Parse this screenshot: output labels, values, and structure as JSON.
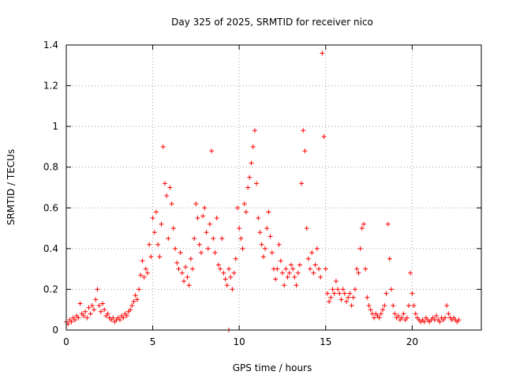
{
  "chart_data": {
    "type": "scatter",
    "title": "Day 325 of 2025, SRMTID for receiver nico",
    "xlabel": "GPS time / hours",
    "ylabel": "SRMTID / TECUs",
    "xlim": [
      0,
      24
    ],
    "ylim": [
      0,
      1.4
    ],
    "xticks": [
      0,
      5,
      10,
      15,
      20
    ],
    "xtick_labels": [
      "0",
      "5",
      "10",
      "15",
      "20"
    ],
    "yticks": [
      0,
      0.2,
      0.4,
      0.6,
      0.8,
      1.0,
      1.2,
      1.4
    ],
    "ytick_labels": [
      "0",
      "0.2",
      "0.4",
      "0.6",
      "0.8",
      "1",
      "1.2",
      "1.4"
    ],
    "grid": true,
    "marker": "+",
    "color": "#ff0000",
    "series": [
      {
        "name": "SRMTID",
        "points": [
          [
            0.0,
            0.04
          ],
          [
            0.1,
            0.03
          ],
          [
            0.2,
            0.05
          ],
          [
            0.3,
            0.04
          ],
          [
            0.4,
            0.06
          ],
          [
            0.5,
            0.05
          ],
          [
            0.6,
            0.07
          ],
          [
            0.7,
            0.06
          ],
          [
            0.8,
            0.13
          ],
          [
            0.9,
            0.08
          ],
          [
            1.0,
            0.07
          ],
          [
            1.1,
            0.09
          ],
          [
            1.2,
            0.06
          ],
          [
            1.3,
            0.11
          ],
          [
            1.4,
            0.08
          ],
          [
            1.5,
            0.12
          ],
          [
            1.6,
            0.1
          ],
          [
            1.7,
            0.15
          ],
          [
            1.8,
            0.2
          ],
          [
            1.9,
            0.12
          ],
          [
            2.0,
            0.09
          ],
          [
            2.1,
            0.13
          ],
          [
            2.2,
            0.1
          ],
          [
            2.3,
            0.07
          ],
          [
            2.4,
            0.08
          ],
          [
            2.5,
            0.06
          ],
          [
            2.6,
            0.05
          ],
          [
            2.7,
            0.06
          ],
          [
            2.8,
            0.04
          ],
          [
            2.9,
            0.05
          ],
          [
            3.0,
            0.06
          ],
          [
            3.1,
            0.05
          ],
          [
            3.2,
            0.07
          ],
          [
            3.3,
            0.06
          ],
          [
            3.4,
            0.08
          ],
          [
            3.5,
            0.07
          ],
          [
            3.6,
            0.09
          ],
          [
            3.7,
            0.1
          ],
          [
            3.8,
            0.12
          ],
          [
            3.9,
            0.14
          ],
          [
            4.0,
            0.17
          ],
          [
            4.1,
            0.15
          ],
          [
            4.2,
            0.2
          ],
          [
            4.3,
            0.27
          ],
          [
            4.4,
            0.34
          ],
          [
            4.5,
            0.26
          ],
          [
            4.6,
            0.3
          ],
          [
            4.7,
            0.28
          ],
          [
            4.8,
            0.42
          ],
          [
            4.9,
            0.36
          ],
          [
            5.0,
            0.55
          ],
          [
            5.1,
            0.48
          ],
          [
            5.2,
            0.58
          ],
          [
            5.3,
            0.42
          ],
          [
            5.4,
            0.36
          ],
          [
            5.5,
            0.52
          ],
          [
            5.6,
            0.9
          ],
          [
            5.7,
            0.72
          ],
          [
            5.8,
            0.66
          ],
          [
            5.9,
            0.45
          ],
          [
            6.0,
            0.7
          ],
          [
            6.1,
            0.62
          ],
          [
            6.2,
            0.5
          ],
          [
            6.3,
            0.4
          ],
          [
            6.4,
            0.33
          ],
          [
            6.5,
            0.3
          ],
          [
            6.6,
            0.38
          ],
          [
            6.7,
            0.28
          ],
          [
            6.8,
            0.24
          ],
          [
            6.9,
            0.31
          ],
          [
            7.0,
            0.26
          ],
          [
            7.1,
            0.22
          ],
          [
            7.2,
            0.35
          ],
          [
            7.3,
            0.3
          ],
          [
            7.4,
            0.45
          ],
          [
            7.5,
            0.62
          ],
          [
            7.6,
            0.55
          ],
          [
            7.7,
            0.42
          ],
          [
            7.8,
            0.38
          ],
          [
            7.9,
            0.56
          ],
          [
            8.0,
            0.6
          ],
          [
            8.1,
            0.48
          ],
          [
            8.2,
            0.4
          ],
          [
            8.3,
            0.52
          ],
          [
            8.4,
            0.88
          ],
          [
            8.5,
            0.45
          ],
          [
            8.6,
            0.38
          ],
          [
            8.7,
            0.55
          ],
          [
            8.8,
            0.32
          ],
          [
            8.9,
            0.3
          ],
          [
            9.0,
            0.45
          ],
          [
            9.1,
            0.28
          ],
          [
            9.2,
            0.25
          ],
          [
            9.3,
            0.22
          ],
          [
            9.4,
            0.3
          ],
          [
            9.5,
            0.26
          ],
          [
            9.6,
            0.2
          ],
          [
            9.7,
            0.28
          ],
          [
            9.8,
            0.35
          ],
          [
            9.9,
            0.6
          ],
          [
            10.0,
            0.5
          ],
          [
            10.1,
            0.45
          ],
          [
            10.2,
            0.4
          ],
          [
            10.3,
            0.62
          ],
          [
            10.4,
            0.58
          ],
          [
            10.5,
            0.7
          ],
          [
            10.6,
            0.75
          ],
          [
            10.7,
            0.82
          ],
          [
            10.8,
            0.9
          ],
          [
            10.9,
            0.98
          ],
          [
            11.0,
            0.72
          ],
          [
            11.1,
            0.55
          ],
          [
            11.2,
            0.48
          ],
          [
            11.3,
            0.42
          ],
          [
            11.4,
            0.36
          ],
          [
            11.5,
            0.4
          ],
          [
            11.6,
            0.5
          ],
          [
            11.7,
            0.58
          ],
          [
            11.8,
            0.46
          ],
          [
            11.9,
            0.38
          ],
          [
            12.0,
            0.3
          ],
          [
            12.1,
            0.25
          ],
          [
            12.2,
            0.3
          ],
          [
            12.3,
            0.42
          ],
          [
            12.4,
            0.34
          ],
          [
            12.5,
            0.28
          ],
          [
            12.6,
            0.22
          ],
          [
            12.7,
            0.3
          ],
          [
            12.8,
            0.26
          ],
          [
            12.9,
            0.28
          ],
          [
            13.0,
            0.32
          ],
          [
            13.1,
            0.3
          ],
          [
            13.2,
            0.26
          ],
          [
            13.3,
            0.22
          ],
          [
            13.4,
            0.28
          ],
          [
            13.5,
            0.32
          ],
          [
            13.6,
            0.72
          ],
          [
            13.7,
            0.98
          ],
          [
            13.8,
            0.88
          ],
          [
            13.9,
            0.5
          ],
          [
            14.0,
            0.35
          ],
          [
            14.1,
            0.3
          ],
          [
            14.2,
            0.38
          ],
          [
            14.3,
            0.28
          ],
          [
            14.4,
            0.32
          ],
          [
            14.5,
            0.4
          ],
          [
            14.6,
            0.3
          ],
          [
            14.7,
            0.26
          ],
          [
            14.8,
            1.36
          ],
          [
            14.9,
            0.95
          ],
          [
            15.0,
            0.3
          ],
          [
            15.1,
            0.18
          ],
          [
            15.2,
            0.14
          ],
          [
            15.3,
            0.16
          ],
          [
            15.4,
            0.2
          ],
          [
            15.5,
            0.18
          ],
          [
            15.6,
            0.24
          ],
          [
            15.7,
            0.2
          ],
          [
            15.8,
            0.18
          ],
          [
            15.9,
            0.15
          ],
          [
            16.0,
            0.2
          ],
          [
            16.1,
            0.18
          ],
          [
            16.2,
            0.14
          ],
          [
            16.3,
            0.16
          ],
          [
            16.4,
            0.18
          ],
          [
            16.5,
            0.12
          ],
          [
            16.6,
            0.16
          ],
          [
            16.7,
            0.2
          ],
          [
            16.8,
            0.3
          ],
          [
            16.9,
            0.28
          ],
          [
            17.0,
            0.4
          ],
          [
            17.1,
            0.5
          ],
          [
            17.2,
            0.52
          ],
          [
            17.3,
            0.3
          ],
          [
            17.4,
            0.16
          ],
          [
            17.5,
            0.12
          ],
          [
            17.6,
            0.1
          ],
          [
            17.7,
            0.08
          ],
          [
            17.8,
            0.06
          ],
          [
            17.9,
            0.08
          ],
          [
            18.0,
            0.07
          ],
          [
            18.1,
            0.06
          ],
          [
            18.2,
            0.08
          ],
          [
            18.3,
            0.1
          ],
          [
            18.4,
            0.12
          ],
          [
            18.5,
            0.18
          ],
          [
            18.6,
            0.52
          ],
          [
            18.7,
            0.35
          ],
          [
            18.8,
            0.2
          ],
          [
            18.9,
            0.12
          ],
          [
            19.0,
            0.08
          ],
          [
            19.1,
            0.06
          ],
          [
            19.2,
            0.07
          ],
          [
            19.3,
            0.05
          ],
          [
            19.4,
            0.06
          ],
          [
            19.5,
            0.08
          ],
          [
            19.6,
            0.05
          ],
          [
            19.7,
            0.06
          ],
          [
            19.8,
            0.12
          ],
          [
            19.9,
            0.28
          ],
          [
            20.0,
            0.18
          ],
          [
            20.1,
            0.12
          ],
          [
            20.2,
            0.08
          ],
          [
            20.3,
            0.06
          ],
          [
            20.4,
            0.05
          ],
          [
            20.5,
            0.04
          ],
          [
            20.6,
            0.05
          ],
          [
            20.7,
            0.04
          ],
          [
            20.8,
            0.06
          ],
          [
            20.9,
            0.05
          ],
          [
            21.0,
            0.04
          ],
          [
            21.1,
            0.05
          ],
          [
            21.2,
            0.06
          ],
          [
            21.3,
            0.05
          ],
          [
            21.4,
            0.07
          ],
          [
            21.5,
            0.05
          ],
          [
            21.6,
            0.04
          ],
          [
            21.7,
            0.06
          ],
          [
            21.8,
            0.05
          ],
          [
            21.9,
            0.06
          ],
          [
            22.0,
            0.12
          ],
          [
            22.1,
            0.08
          ],
          [
            22.2,
            0.06
          ],
          [
            22.3,
            0.05
          ],
          [
            22.4,
            0.06
          ],
          [
            22.5,
            0.05
          ],
          [
            22.6,
            0.04
          ],
          [
            22.7,
            0.05
          ],
          [
            9.4,
            0.0
          ]
        ]
      }
    ]
  }
}
